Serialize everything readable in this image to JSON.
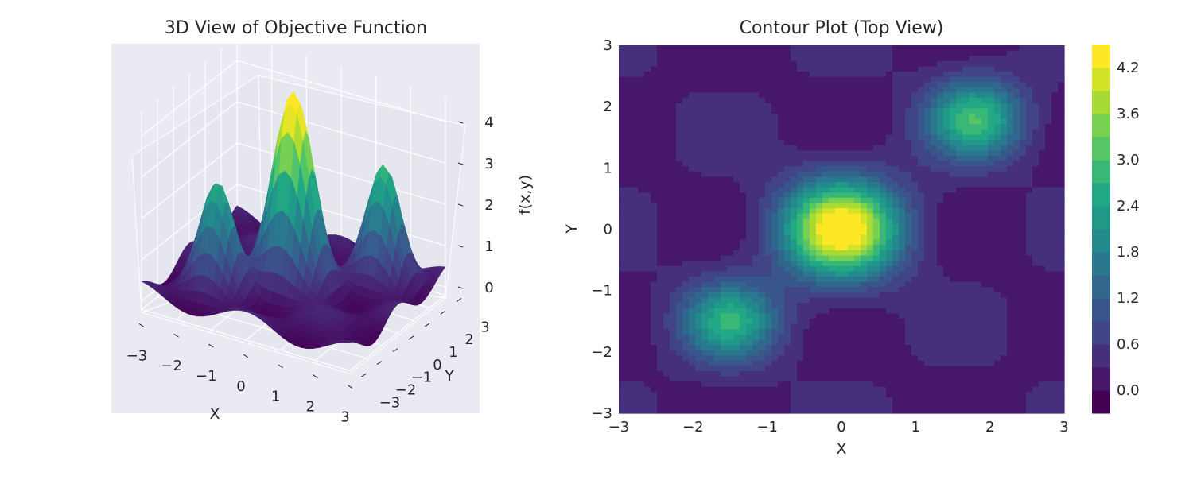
{
  "chart_data": [
    {
      "type": "surface3d",
      "title": "3D View of Objective Function",
      "xlabel": "X",
      "ylabel": "Y",
      "zlabel": "f(x,y)",
      "xlim": [
        -3,
        3
      ],
      "ylim": [
        -3,
        3
      ],
      "zlim": [
        -0.2,
        4.5
      ],
      "x_ticks": [
        "−3",
        "−2",
        "−1",
        "0",
        "1",
        "2",
        "3"
      ],
      "y_ticks": [
        "−3",
        "−2",
        "−1",
        "0",
        "1",
        "2",
        "3"
      ],
      "z_ticks": [
        "0",
        "1",
        "2",
        "3",
        "4"
      ],
      "colormap": "viridis",
      "grid": true,
      "peaks": [
        {
          "x": 0,
          "y": 0,
          "z": 4.4
        },
        {
          "x": 1.8,
          "y": 1.8,
          "z": 2.8
        },
        {
          "x": -1.5,
          "y": -1.5,
          "z": 2.5
        }
      ]
    },
    {
      "type": "contour",
      "title": "Contour Plot (Top View)",
      "xlabel": "X",
      "ylabel": "Y",
      "xlim": [
        -3,
        3
      ],
      "ylim": [
        -3,
        3
      ],
      "x_ticks": [
        "−3",
        "−2",
        "−1",
        "0",
        "1",
        "2",
        "3"
      ],
      "y_ticks": [
        "−3",
        "−2",
        "−1",
        "0",
        "1",
        "2",
        "3"
      ],
      "colormap": "viridis",
      "levels": [
        -0.3,
        0.0,
        0.3,
        0.6,
        0.9,
        1.2,
        1.5,
        1.8,
        2.1,
        2.4,
        2.7,
        3.0,
        3.3,
        3.6,
        3.9,
        4.2,
        4.5
      ],
      "colorbar_ticks": [
        "0.0",
        "0.6",
        "1.2",
        "1.8",
        "2.4",
        "3.0",
        "3.6",
        "4.2"
      ],
      "colorbar_tick_values": [
        0.0,
        0.6,
        1.2,
        1.8,
        2.4,
        3.0,
        3.6,
        4.2
      ],
      "peaks": [
        {
          "x": 0,
          "y": 0,
          "z": 4.4
        },
        {
          "x": 1.8,
          "y": 1.8,
          "z": 2.8
        },
        {
          "x": -1.5,
          "y": -1.5,
          "z": 2.5
        }
      ]
    }
  ]
}
